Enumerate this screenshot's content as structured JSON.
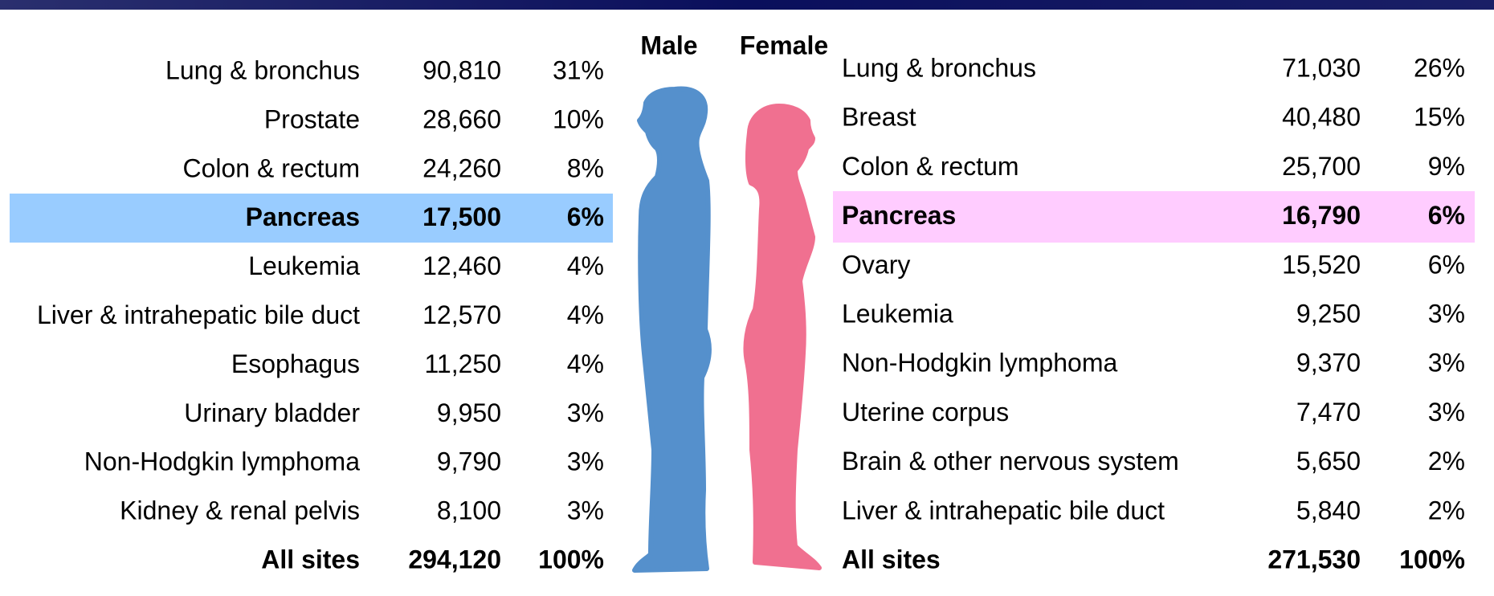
{
  "male": {
    "title": "Male",
    "rows": [
      {
        "site": "Lung & bronchus",
        "count": "90,810",
        "percent": "31%"
      },
      {
        "site": "Prostate",
        "count": "28,660",
        "percent": "10%"
      },
      {
        "site": "Colon & rectum",
        "count": "24,260",
        "percent": "8%"
      },
      {
        "site": "Pancreas",
        "count": "17,500",
        "percent": "6%"
      },
      {
        "site": "Leukemia",
        "count": "12,460",
        "percent": "4%"
      },
      {
        "site": "Liver & intrahepatic bile duct",
        "count": "12,570",
        "percent": "4%"
      },
      {
        "site": "Esophagus",
        "count": "11,250",
        "percent": "4%"
      },
      {
        "site": "Urinary bladder",
        "count": "9,950",
        "percent": "3%"
      },
      {
        "site": "Non-Hodgkin lymphoma",
        "count": "9,790",
        "percent": "3%"
      },
      {
        "site": "Kidney & renal pelvis",
        "count": "8,100",
        "percent": "3%"
      }
    ],
    "total": {
      "site": "All sites",
      "count": "294,120",
      "percent": "100%"
    }
  },
  "female": {
    "title": "Female",
    "rows": [
      {
        "site": "Lung & bronchus",
        "count": "71,030",
        "percent": "26%"
      },
      {
        "site": "Breast",
        "count": "40,480",
        "percent": "15%"
      },
      {
        "site": "Colon & rectum",
        "count": "25,700",
        "percent": "9%"
      },
      {
        "site": "Pancreas",
        "count": "16,790",
        "percent": "6%"
      },
      {
        "site": "Ovary",
        "count": "15,520",
        "percent": "6%"
      },
      {
        "site": "Leukemia",
        "count": "9,250",
        "percent": "3%"
      },
      {
        "site": "Non-Hodgkin lymphoma",
        "count": "9,370",
        "percent": "3%"
      },
      {
        "site": "Uterine corpus",
        "count": "7,470",
        "percent": "3%"
      },
      {
        "site": "Brain & other nervous system",
        "count": "5,650",
        "percent": "2%"
      },
      {
        "site": "Liver & intrahepatic bile duct",
        "count": "5,840",
        "percent": "2%"
      }
    ],
    "total": {
      "site": "All sites",
      "count": "271,530",
      "percent": "100%"
    }
  }
}
